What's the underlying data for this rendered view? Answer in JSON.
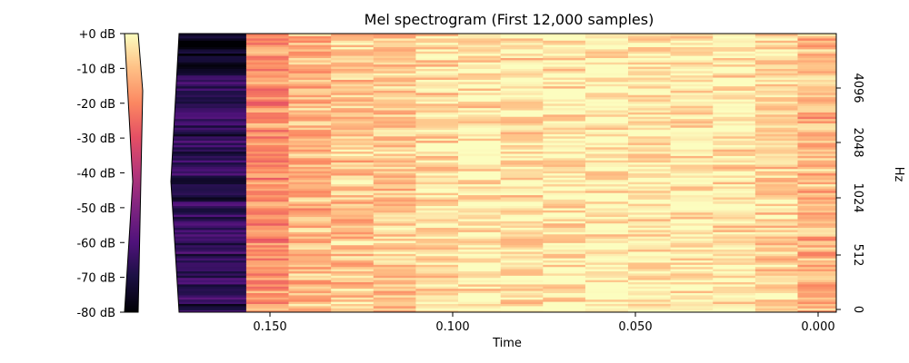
{
  "chart_data": {
    "type": "heatmap",
    "title": "Mel spectrogram (First 12,000 samples)",
    "xlabel": "Time",
    "ylabel": "Hz",
    "x_axis_reversed": true,
    "y_axis_side": "right",
    "xlim": [
      0.0,
      0.175
    ],
    "xticks": [
      {
        "value": 0.0,
        "label": "0.000"
      },
      {
        "value": 0.05,
        "label": "0.050"
      },
      {
        "value": 0.1,
        "label": "0.100"
      },
      {
        "value": 0.15,
        "label": "0.150"
      }
    ],
    "yticks": [
      {
        "value": 0,
        "label": "0"
      },
      {
        "value": 512,
        "label": "512"
      },
      {
        "value": 1024,
        "label": "1024"
      },
      {
        "value": 2048,
        "label": "2048"
      },
      {
        "value": 4096,
        "label": "4096"
      }
    ],
    "colormap": "magma",
    "colorbar": {
      "range_db": [
        -80,
        0
      ],
      "ticks": [
        "+0 dB",
        "-10 dB",
        "-20 dB",
        "-30 dB",
        "-40 dB",
        "-50 dB",
        "-60 dB",
        "-70 dB",
        "-80 dB"
      ],
      "placement": "left"
    },
    "frame_times": [
      0.0,
      0.0116,
      0.0232,
      0.0348,
      0.0464,
      0.058,
      0.0697,
      0.0813,
      0.0929,
      0.1045,
      0.1161,
      0.1277,
      0.1393,
      0.1509,
      0.1625
    ],
    "frame_mean_db": [
      -12,
      -6,
      -4,
      -3,
      -3,
      -2,
      -3,
      -4,
      -3,
      -5,
      -8,
      -9,
      -12,
      -18,
      -66
    ],
    "mel_bands": 128
  }
}
